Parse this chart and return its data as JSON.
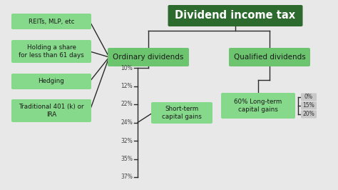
{
  "title": "Dividend income tax",
  "title_bg": "#2d6a2d",
  "title_fg": "#ffffff",
  "light_green": "#86d98a",
  "medium_green": "#6cc46e",
  "dark_green": "#2d6a2d",
  "bg_color": "#e8e8e8",
  "box_text_color": "#1a1a1a",
  "gray_bg": "#c8c8c8",
  "left_boxes": [
    "REITs, MLP, etc",
    "Holding a share\nfor less than 61 days",
    "Hedging",
    "Traditional 401 (k) or\nIRA"
  ],
  "ordinary_label": "Ordinary dividends",
  "qualified_label": "Qualified dividends",
  "short_term_label": "Short-term\ncapital gains",
  "long_term_label": "60% Long-term\ncapital gains",
  "ordinary_rates": [
    "10%",
    "12%",
    "22%",
    "24%",
    "32%",
    "35%",
    "37%"
  ],
  "qualified_rates": [
    "0%",
    "15%",
    "20%"
  ]
}
